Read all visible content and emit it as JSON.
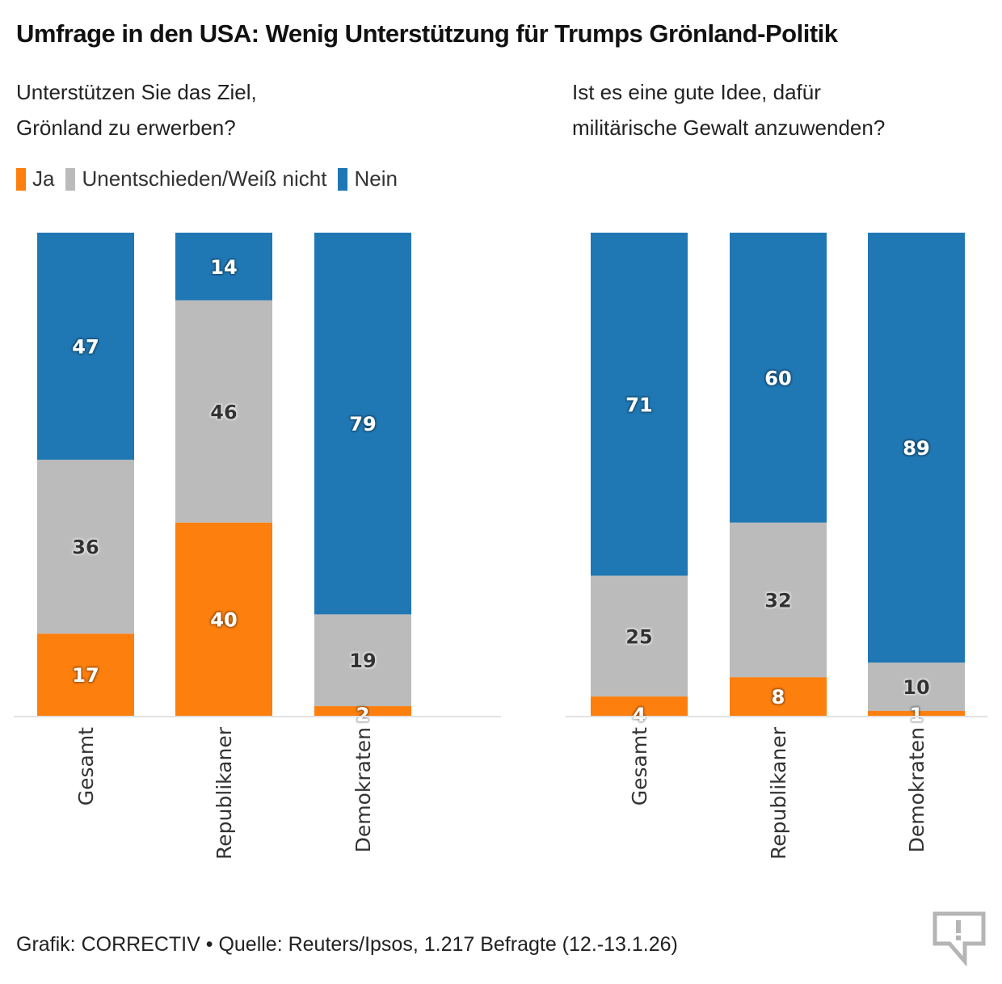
{
  "title": "Umfrage in den USA: Wenig Unterstützung für Trumps Grönland-Politik",
  "legend": [
    {
      "label": "Ja",
      "color": "#fd7f0e"
    },
    {
      "label": "Unentschieden/Weiß nicht",
      "color": "#bbbbbb"
    },
    {
      "label": "Nein",
      "color": "#1f77b4"
    }
  ],
  "footer": "Grafik: CORRECTIV • Quelle: Reuters/Ipsos, 1.217 Befragte (12.-13.1.26)",
  "logo_icon": "speech-bubble-exclamation-icon",
  "chart_data": [
    {
      "type": "bar",
      "stacked": true,
      "title": "Unterstützen Sie das Ziel,\nGrönland zu erwerben?",
      "categories": [
        "Gesamt",
        "Republikaner",
        "Demokraten"
      ],
      "series": [
        {
          "name": "Ja",
          "color": "#fd7f0e",
          "values": [
            17,
            40,
            2
          ]
        },
        {
          "name": "Unentschieden/Weiß nicht",
          "color": "#bbbbbb",
          "values": [
            36,
            46,
            19
          ]
        },
        {
          "name": "Nein",
          "color": "#1f77b4",
          "values": [
            47,
            14,
            79
          ]
        }
      ],
      "ylim": [
        0,
        100
      ],
      "unit": "%",
      "grid": false
    },
    {
      "type": "bar",
      "stacked": true,
      "title": "Ist es eine gute Idee, dafür\nmilitärische Gewalt anzuwenden?",
      "categories": [
        "Gesamt",
        "Republikaner",
        "Demokraten"
      ],
      "series": [
        {
          "name": "Ja",
          "color": "#fd7f0e",
          "values": [
            4,
            8,
            1
          ]
        },
        {
          "name": "Unentschieden/Weiß nicht",
          "color": "#bbbbbb",
          "values": [
            25,
            32,
            10
          ]
        },
        {
          "name": "Nein",
          "color": "#1f77b4",
          "values": [
            71,
            60,
            89
          ]
        }
      ],
      "ylim": [
        0,
        100
      ],
      "unit": "%",
      "grid": false
    }
  ]
}
